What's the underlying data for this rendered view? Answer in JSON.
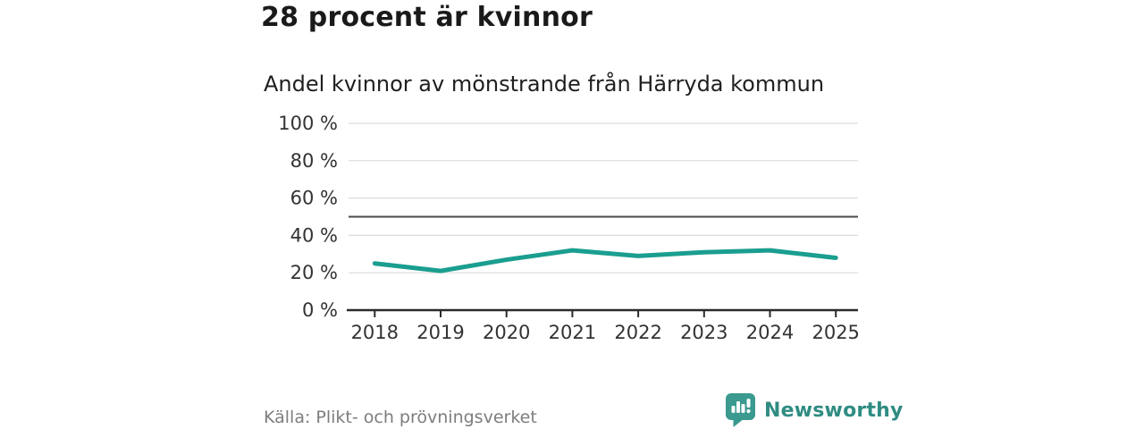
{
  "header": {
    "title": "28 procent är kvinnor",
    "subtitle": "Andel kvinnor av mönstrande från Härryda kommun"
  },
  "chart_data": {
    "type": "line",
    "title": "28 procent är kvinnor",
    "subtitle": "Andel kvinnor av mönstrande från Härryda kommun",
    "x": [
      2018,
      2019,
      2020,
      2021,
      2022,
      2023,
      2024,
      2025
    ],
    "values": [
      25,
      21,
      27,
      32,
      29,
      31,
      32,
      28
    ],
    "series_name": "Andel kvinnor av mönstrande",
    "unit": "%",
    "ylim": [
      0,
      100
    ],
    "yticks": [
      0,
      20,
      40,
      60,
      80,
      100
    ],
    "ytick_format": "{v} %",
    "reference_line": 50,
    "grid": "horizontal",
    "legend": "none",
    "line_color": "#1a9e8f",
    "reference_color": "#4a4a4a",
    "grid_color": "#dcdcdc",
    "axis_color": "#2b2b2b",
    "tick_label_color": "#333333"
  },
  "footer": {
    "source": "Källa: Plikt- och prövningsverket",
    "brand": "Newsworthy",
    "brand_color": "#2f8c82",
    "logo_color": "#3a9a8f"
  }
}
